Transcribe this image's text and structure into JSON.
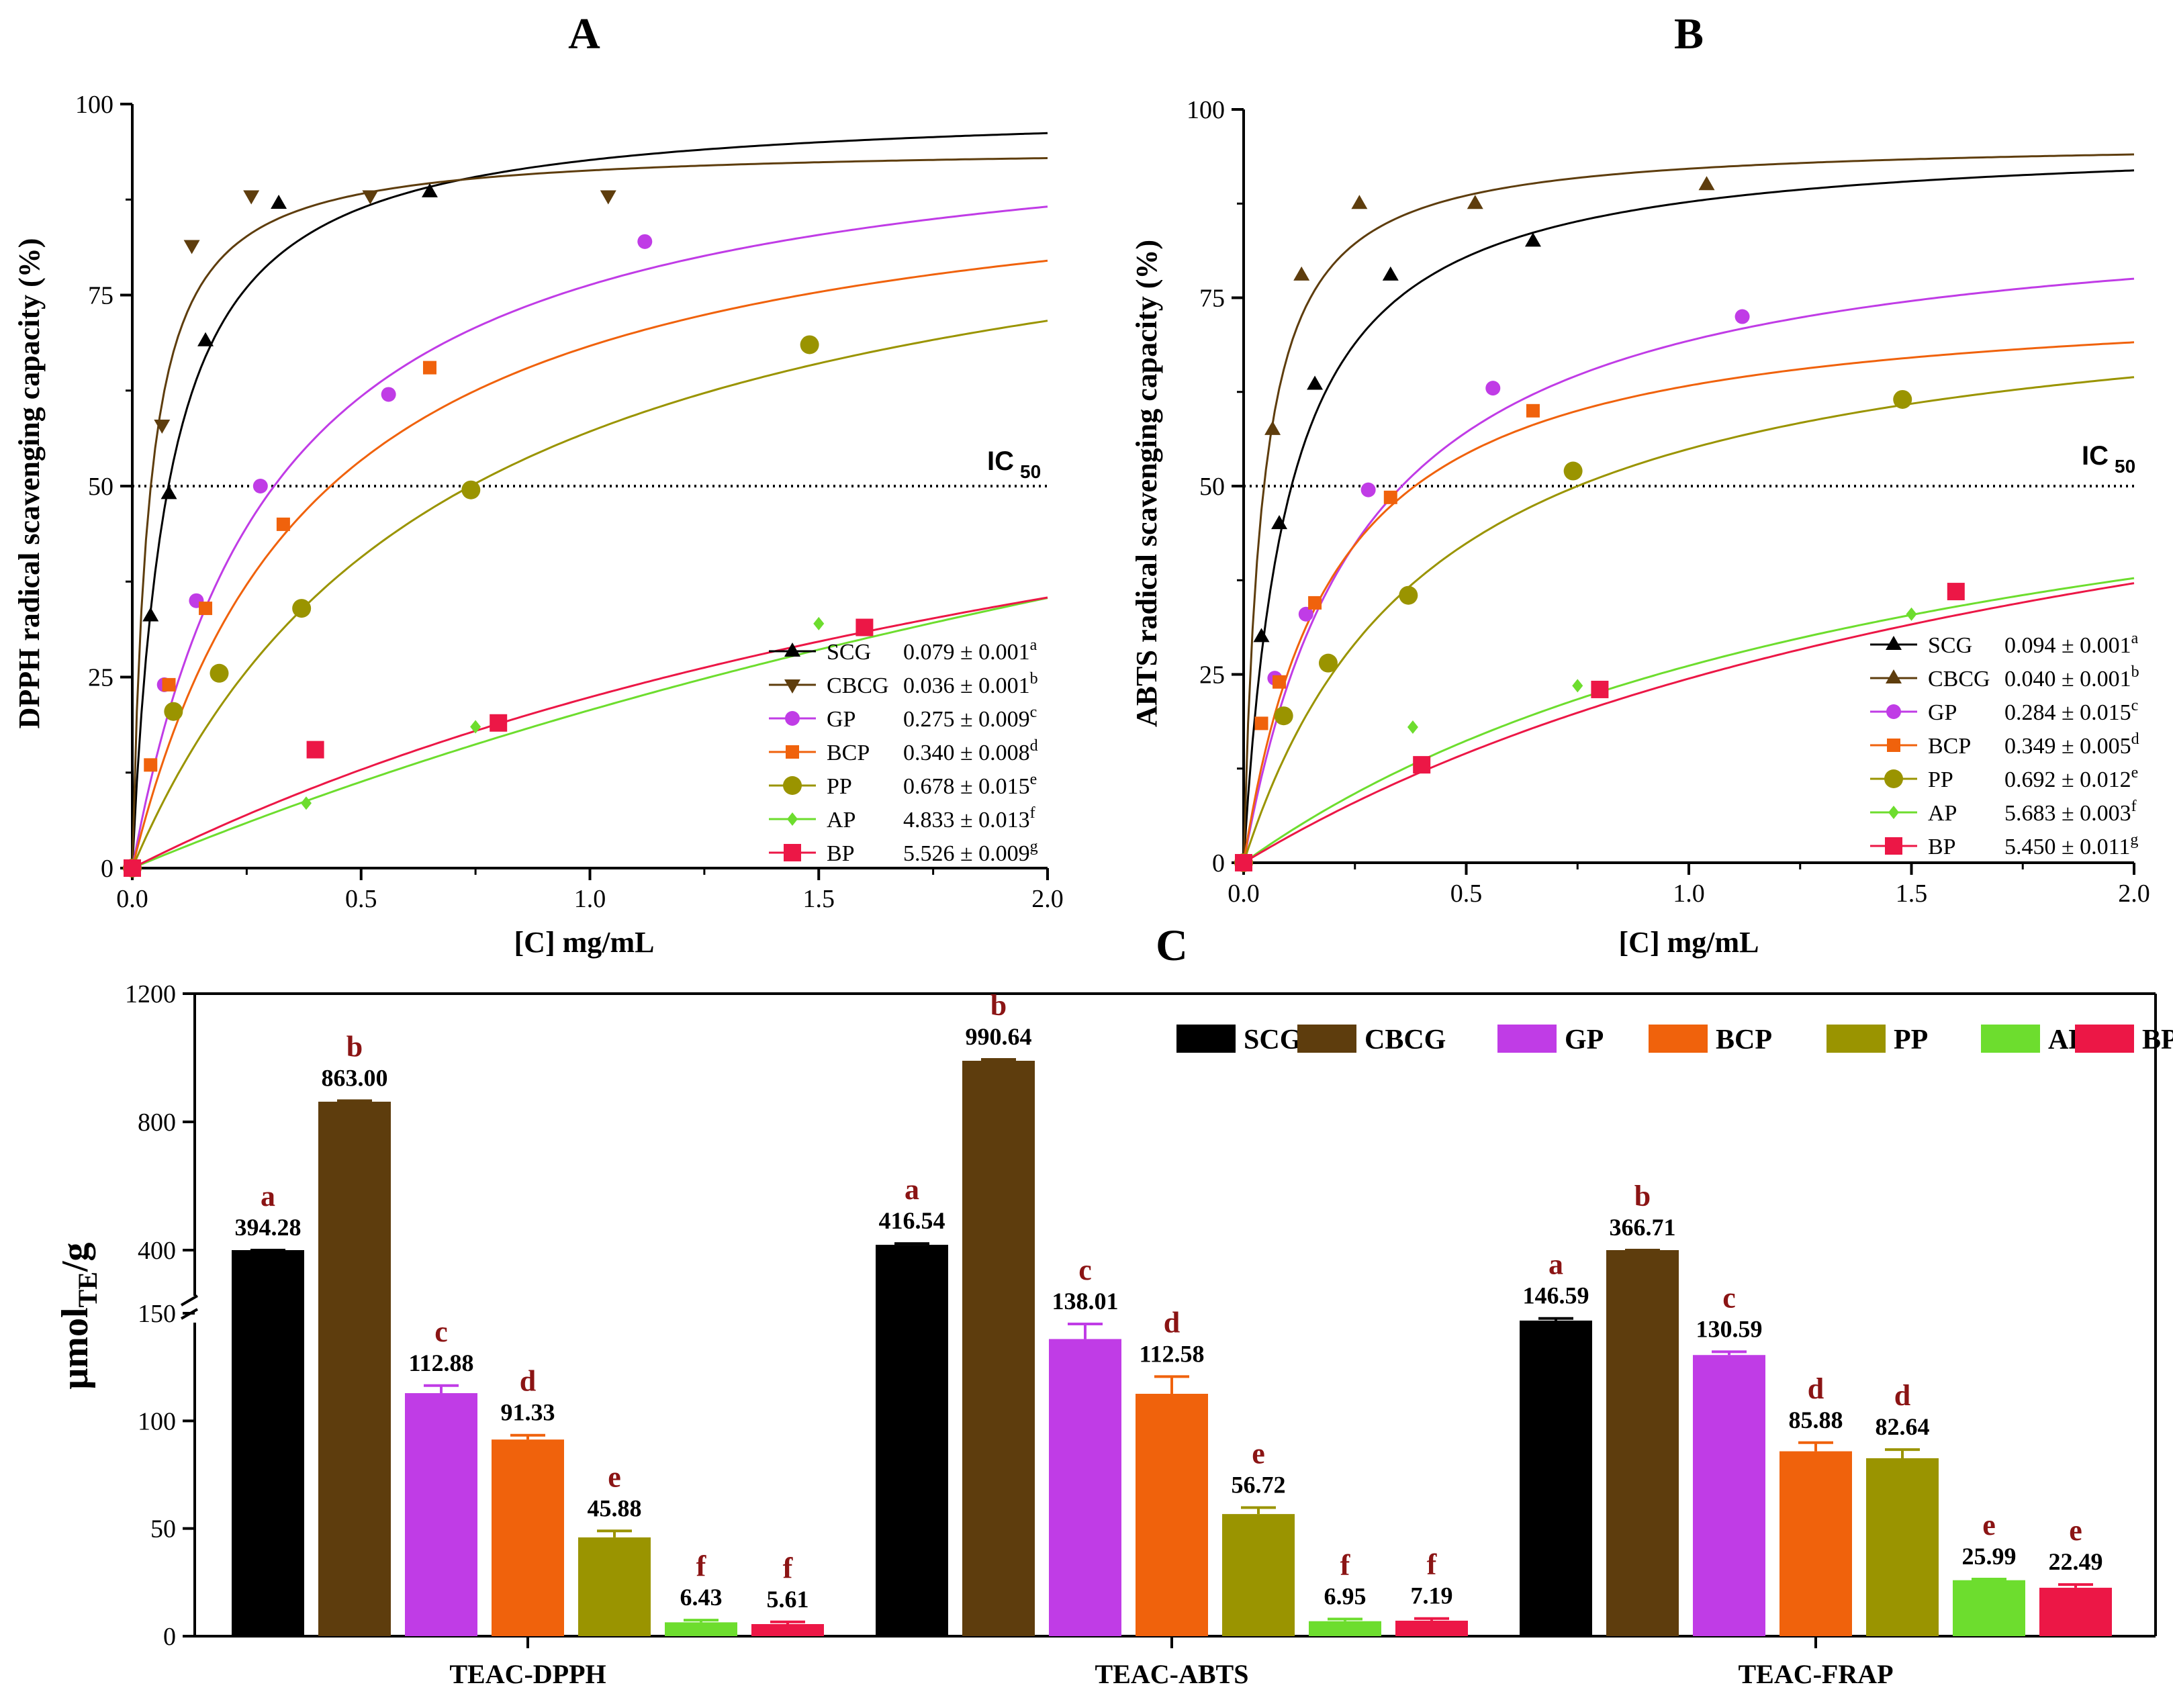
{
  "colors": {
    "SCG": "#000000",
    "CBCG": "#5e3d0d",
    "GP": "#c03ce6",
    "BCP": "#f0620c",
    "PP": "#9a9400",
    "AP": "#6ddd2e",
    "BP": "#ec1746",
    "letter": "#8b1414"
  },
  "panels": {
    "A": {
      "letter": "A",
      "ylabel": "DPPH radical scavenging capacity (%)",
      "xlabel": "[C] mg/mL",
      "ic50": {
        "main": "IC",
        "sub": "50"
      }
    },
    "B": {
      "letter": "B",
      "ylabel": "ABTS radical scavenging capacity (%)",
      "xlabel": "[C] mg/mL",
      "ic50": {
        "main": "IC",
        "sub": "50"
      }
    },
    "C": {
      "letter": "C",
      "ylabel_main": "μmol",
      "ylabel_sub": "TE",
      "ylabel_tail": "/g"
    }
  },
  "chart_data": [
    {
      "type": "scatter",
      "panel": "A",
      "xlabel": "[C] mg/mL",
      "ylabel": "DPPH radical scavenging capacity (%)",
      "xlim": [
        0,
        2.0
      ],
      "ylim": [
        0,
        100
      ],
      "xticks": [
        "0.0",
        "0.5",
        "1.0",
        "1.5",
        "2.0"
      ],
      "yticks": [
        "0",
        "25",
        "50",
        "75",
        "100"
      ],
      "reference_line": {
        "y": 50,
        "label": "IC50"
      },
      "legend_position": "bottom-right",
      "series": [
        {
          "name": "SCG",
          "value": "0.079 ± 0.001",
          "letter": "a",
          "marker": "triangle-up",
          "curve": {
            "top": 100,
            "ec50": 0.079
          },
          "points": [
            [
              0,
              0
            ],
            [
              0.04,
              33
            ],
            [
              0.08,
              49
            ],
            [
              0.16,
              69
            ],
            [
              0.32,
              87
            ],
            [
              0.65,
              88.5
            ]
          ]
        },
        {
          "name": "CBCG",
          "value": "0.036 ± 0.001",
          "letter": "b",
          "marker": "triangle-down",
          "curve": {
            "top": 94.6,
            "ec50": 0.036
          },
          "points": [
            [
              0,
              0
            ],
            [
              0.065,
              58
            ],
            [
              0.13,
              81.5
            ],
            [
              0.26,
              88
            ],
            [
              0.52,
              88
            ],
            [
              1.04,
              88
            ]
          ]
        },
        {
          "name": "GP",
          "value": "0.275 ± 0.009",
          "letter": "c",
          "marker": "circle",
          "curve": {
            "top": 100,
            "ec50": 0.31
          },
          "points": [
            [
              0,
              0
            ],
            [
              0.07,
              24
            ],
            [
              0.14,
              35
            ],
            [
              0.28,
              50
            ],
            [
              0.56,
              62
            ],
            [
              1.12,
              82
            ]
          ]
        },
        {
          "name": "BCP",
          "value": "0.340 ± 0.008",
          "letter": "d",
          "marker": "square",
          "curve": {
            "top": 95,
            "ec50": 0.39
          },
          "points": [
            [
              0,
              0
            ],
            [
              0.04,
              13.5
            ],
            [
              0.08,
              24
            ],
            [
              0.16,
              34
            ],
            [
              0.33,
              45
            ],
            [
              0.65,
              65.5
            ]
          ]
        },
        {
          "name": "PP",
          "value": "0.678 ± 0.015",
          "letter": "e",
          "marker": "circle-large",
          "curve": {
            "top": 96,
            "ec50": 0.68
          },
          "points": [
            [
              0,
              0
            ],
            [
              0.09,
              20.5
            ],
            [
              0.19,
              25.5
            ],
            [
              0.37,
              34
            ],
            [
              0.74,
              49.5
            ],
            [
              1.48,
              68.5
            ]
          ]
        },
        {
          "name": "AP",
          "value": "4.833 ± 0.013",
          "letter": "f",
          "marker": "diamond",
          "curve": {
            "top": 122,
            "ec50": 4.9
          },
          "points": [
            [
              0,
              0
            ],
            [
              0.38,
              8.5
            ],
            [
              0.75,
              18.5
            ],
            [
              1.5,
              32
            ]
          ]
        },
        {
          "name": "BP",
          "value": "5.526 ± 0.009",
          "letter": "g",
          "marker": "square-large",
          "curve": {
            "top": 85,
            "ec50": 2.8
          },
          "points": [
            [
              0,
              0
            ],
            [
              0.4,
              15.5
            ],
            [
              0.8,
              19
            ],
            [
              1.6,
              31.5
            ]
          ]
        }
      ]
    },
    {
      "type": "scatter",
      "panel": "B",
      "xlabel": "[C] mg/mL",
      "ylabel": "ABTS radical scavenging capacity (%)",
      "xlim": [
        0,
        2.0
      ],
      "ylim": [
        0,
        100
      ],
      "xticks": [
        "0.0",
        "0.5",
        "1.0",
        "1.5",
        "2.0"
      ],
      "yticks": [
        "0",
        "25",
        "50",
        "75",
        "100"
      ],
      "reference_line": {
        "y": 50,
        "label": "IC50"
      },
      "legend_position": "bottom-right",
      "series": [
        {
          "name": "SCG",
          "value": "0.094 ± 0.001",
          "letter": "a",
          "marker": "triangle-up",
          "curve": {
            "top": 96.5,
            "ec50": 0.1
          },
          "points": [
            [
              0,
              0
            ],
            [
              0.04,
              30
            ],
            [
              0.08,
              45
            ],
            [
              0.16,
              63.5
            ],
            [
              0.33,
              78
            ],
            [
              0.65,
              82.5
            ]
          ]
        },
        {
          "name": "CBCG",
          "value": "0.040 ± 0.001",
          "letter": "b",
          "marker": "triangle-up",
          "curve": {
            "top": 96,
            "ec50": 0.042
          },
          "points": [
            [
              0,
              0
            ],
            [
              0.065,
              57.5
            ],
            [
              0.13,
              78
            ],
            [
              0.26,
              87.5
            ],
            [
              0.52,
              87.5
            ],
            [
              1.04,
              90
            ]
          ]
        },
        {
          "name": "GP",
          "value": "0.284 ± 0.015",
          "letter": "c",
          "marker": "circle",
          "curve": {
            "top": 88,
            "ec50": 0.27
          },
          "points": [
            [
              0,
              0
            ],
            [
              0.07,
              24.5
            ],
            [
              0.14,
              33
            ],
            [
              0.28,
              49.5
            ],
            [
              0.56,
              63
            ],
            [
              1.12,
              72.5
            ]
          ]
        },
        {
          "name": "BCP",
          "value": "0.349 ± 0.005",
          "letter": "d",
          "marker": "square",
          "curve": {
            "top": 76,
            "ec50": 0.2
          },
          "points": [
            [
              0,
              0
            ],
            [
              0.04,
              18.5
            ],
            [
              0.08,
              24
            ],
            [
              0.16,
              34.5
            ],
            [
              0.33,
              48.5
            ],
            [
              0.65,
              60
            ]
          ]
        },
        {
          "name": "PP",
          "value": "0.692 ± 0.012",
          "letter": "e",
          "marker": "circle-large",
          "curve": {
            "top": 78,
            "ec50": 0.42
          },
          "points": [
            [
              0,
              0
            ],
            [
              0.09,
              19.5
            ],
            [
              0.19,
              26.5
            ],
            [
              0.37,
              35.5
            ],
            [
              0.74,
              52
            ],
            [
              1.48,
              61.5
            ]
          ]
        },
        {
          "name": "AP",
          "value": "5.683 ± 0.003",
          "letter": "f",
          "marker": "diamond",
          "curve": {
            "top": 68,
            "ec50": 1.6
          },
          "points": [
            [
              0,
              0
            ],
            [
              0.38,
              18
            ],
            [
              0.75,
              23.5
            ],
            [
              1.5,
              33
            ]
          ]
        },
        {
          "name": "BP",
          "value": "5.450 ± 0.011",
          "letter": "g",
          "marker": "square-large",
          "curve": {
            "top": 77,
            "ec50": 2.15
          },
          "points": [
            [
              0,
              0
            ],
            [
              0.4,
              13
            ],
            [
              0.8,
              23
            ],
            [
              1.6,
              36
            ]
          ]
        }
      ]
    },
    {
      "type": "bar",
      "panel": "C",
      "ylabel": "μmolTE/g",
      "y_axis_break": true,
      "ylim_lower": [
        0,
        150
      ],
      "ylim_upper": [
        400,
        1200
      ],
      "yticks_lower": [
        "0",
        "50",
        "100",
        "150"
      ],
      "yticks_upper": [
        "400",
        "800",
        "1200"
      ],
      "legend_position": "top-right",
      "series_names": [
        "SCG",
        "CBCG",
        "GP",
        "BCP",
        "PP",
        "AP",
        "BP"
      ],
      "groups": [
        {
          "category": "TEAC-DPPH",
          "values": [
            394.28,
            863.0,
            112.88,
            91.33,
            45.88,
            6.43,
            5.61
          ],
          "labels": [
            "394.28",
            "863.00",
            "112.88",
            "91.33",
            "45.88",
            "6.43",
            "5.61"
          ],
          "errors": [
            3,
            3,
            3.5,
            2,
            3,
            1,
            1
          ],
          "letters": [
            "a",
            "b",
            "c",
            "d",
            "e",
            "f",
            "f"
          ]
        },
        {
          "category": "TEAC-ABTS",
          "values": [
            416.54,
            990.64,
            138.01,
            112.58,
            56.72,
            6.95,
            7.19
          ],
          "labels": [
            "416.54",
            "990.64",
            "138.01",
            "112.58",
            "56.72",
            "6.95",
            "7.19"
          ],
          "errors": [
            4,
            4,
            7,
            8,
            3,
            1,
            1
          ],
          "letters": [
            "a",
            "b",
            "c",
            "d",
            "e",
            "f",
            "f"
          ]
        },
        {
          "category": "TEAC-FRAP",
          "values": [
            146.59,
            366.71,
            130.59,
            85.88,
            82.64,
            25.99,
            22.49
          ],
          "labels": [
            "146.59",
            "366.71",
            "130.59",
            "85.88",
            "82.64",
            "25.99",
            "22.49"
          ],
          "errors": [
            1,
            1,
            1.5,
            4,
            4,
            0.5,
            1.5
          ],
          "letters": [
            "a",
            "b",
            "c",
            "d",
            "d",
            "e",
            "e"
          ]
        }
      ]
    }
  ]
}
